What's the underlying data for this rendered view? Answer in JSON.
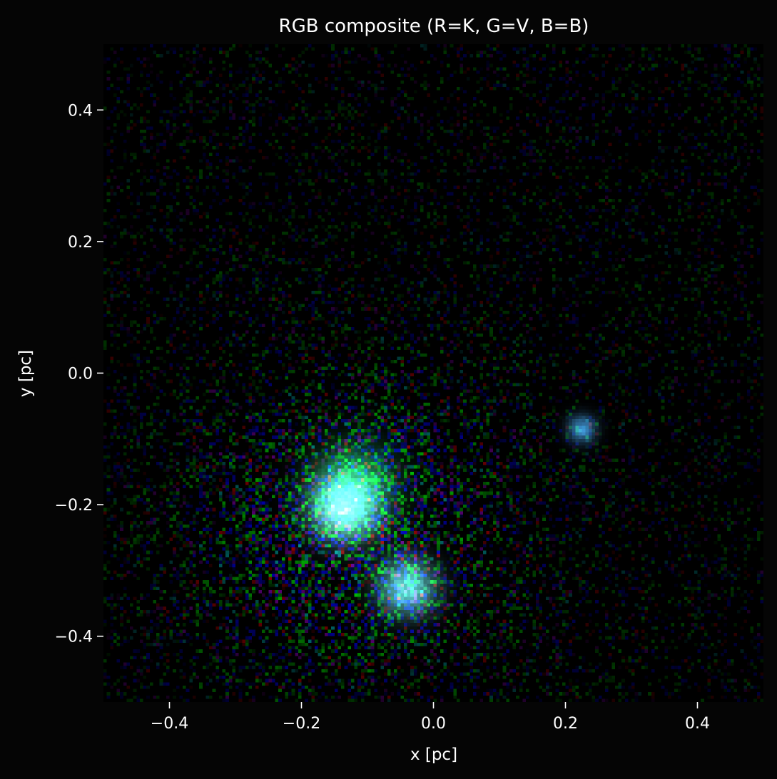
{
  "chart_data": {
    "type": "heatmap",
    "title": "RGB composite (R=K, G=V, B=B)",
    "xlabel": "x [pc]",
    "ylabel": "y [pc]",
    "xlim": [
      -0.5,
      0.5
    ],
    "ylim": [
      -0.5,
      0.5
    ],
    "xticks": [
      -0.4,
      -0.2,
      0.0,
      0.2,
      0.4
    ],
    "yticks": [
      -0.4,
      -0.2,
      0.0,
      0.2,
      0.4
    ],
    "xtick_labels": [
      "−0.4",
      "−0.2",
      "0.0",
      "0.2",
      "0.4"
    ],
    "ytick_labels": [
      "−0.4",
      "−0.2",
      "0.0",
      "0.2",
      "0.4"
    ],
    "grid": false,
    "channels": {
      "R": "K",
      "G": "V",
      "B": "B"
    },
    "bins": [
      200,
      200
    ],
    "sources": [
      {
        "x": -0.135,
        "y": -0.205,
        "r": 0.032,
        "peak": 1.0,
        "rgb": [
          0.55,
          1.0,
          1.0
        ]
      },
      {
        "x": -0.12,
        "y": -0.17,
        "r": 0.04,
        "peak": 0.6,
        "rgb": [
          0.15,
          1.0,
          0.55
        ]
      },
      {
        "x": -0.04,
        "y": -0.325,
        "r": 0.028,
        "peak": 0.9,
        "rgb": [
          0.45,
          1.0,
          1.0
        ]
      },
      {
        "x": 0.225,
        "y": -0.085,
        "r": 0.014,
        "peak": 0.8,
        "rgb": [
          0.3,
          0.7,
          1.0
        ]
      }
    ],
    "diffuse_halo": {
      "x": -0.12,
      "y": -0.24,
      "r": 0.16,
      "peak": 0.4
    },
    "colors": {
      "background": "#050505",
      "text": "#ffffff"
    }
  }
}
